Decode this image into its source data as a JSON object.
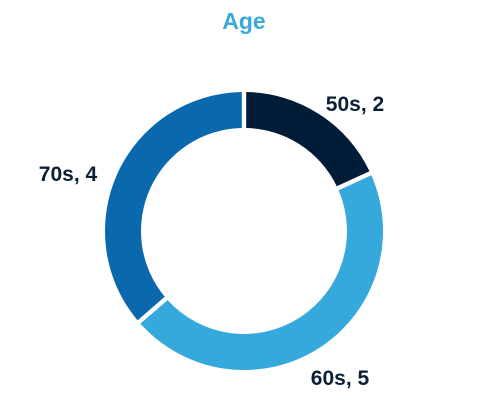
{
  "chart_data": {
    "type": "pie",
    "title": "Age",
    "donut": true,
    "categories": [
      "50s",
      "60s",
      "70s"
    ],
    "values": [
      2,
      5,
      4
    ],
    "labels": [
      "50s, 2",
      "60s, 5",
      "70s, 4"
    ],
    "colors": [
      "#011c37",
      "#35a8dc",
      "#0a69ad"
    ],
    "title_color": "#39a9dc",
    "label_color": "#0b1f35",
    "legend": "none"
  }
}
